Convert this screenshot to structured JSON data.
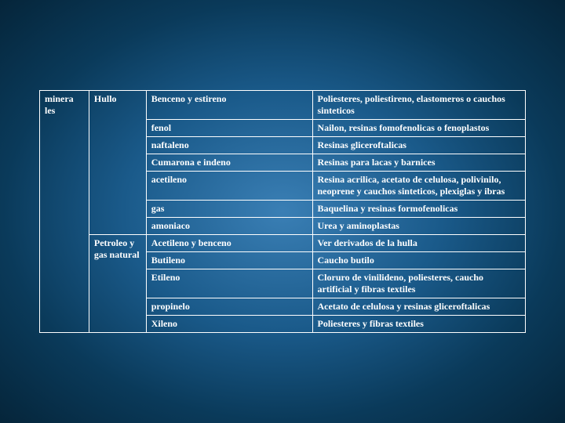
{
  "colors": {
    "text": "#ffffff",
    "border": "#ffffff",
    "bg_center": "#3a7fb5",
    "bg_edge": "#05253a"
  },
  "font": {
    "family": "Times New Roman, serif",
    "size_pt": 12,
    "bold_cells": true
  },
  "table": {
    "col1": "minera les",
    "section1": {
      "header": "Hullo",
      "rows": [
        {
          "c3": "Benceno y estireno",
          "c4": "Poliesteres, poliestireno, elastomeros o cauchos sinteticos"
        },
        {
          "c3": "fenol",
          "c4": "Nailon, resinas fomofenolicas o fenoplastos"
        },
        {
          "c3": "naftaleno",
          "c4": "Resinas gliceroftalicas"
        },
        {
          "c3": "Cumarona e indeno",
          "c4": "Resinas para lacas y barnices"
        },
        {
          "c3": "acetileno",
          "c4": "Resina acrilica, acetato de celulosa, polivinilo, neoprene y cauchos sinteticos, plexiglas y ibras"
        },
        {
          "c3": "gas",
          "c4": "Baquelina y resinas formofenolicas"
        },
        {
          "c3": "amoniaco",
          "c4": "Urea y aminoplastas"
        }
      ]
    },
    "section2": {
      "header": "Petroleo y gas natural",
      "rows": [
        {
          "c3": "Acetileno y benceno",
          "c4": "Ver derivados de la hulla"
        },
        {
          "c3": "Butileno",
          "c4": "Caucho butilo"
        },
        {
          "c3": "Etileno",
          "c4": "Cloruro de vinilideno, poliesteres, caucho artificial y fibras textiles"
        },
        {
          "c3": "propinelo",
          "c4": "Acetato de celulosa y resinas gliceroftalicas"
        },
        {
          "c3": "Xileno",
          "c4": "Poliesteres y fibras textiles"
        }
      ]
    }
  }
}
